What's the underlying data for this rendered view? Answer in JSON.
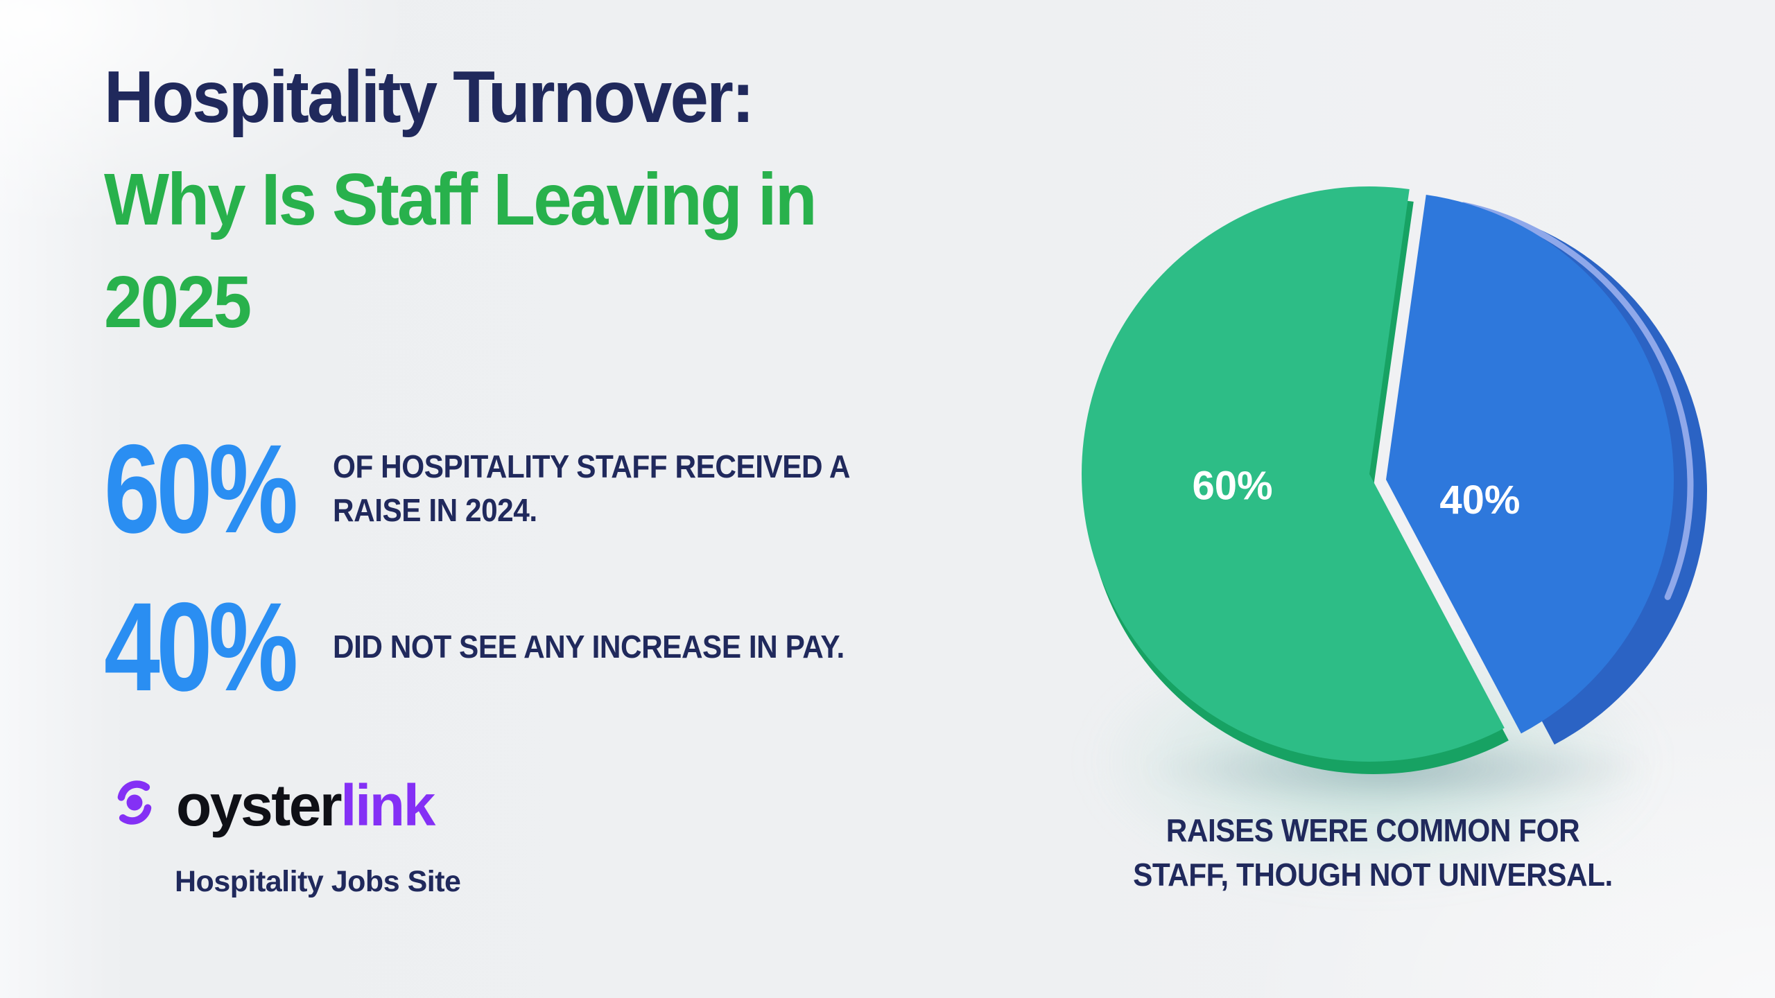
{
  "background": {
    "base": "#eef0f2"
  },
  "title": {
    "line1": "Hospitality Turnover:",
    "line2": "Why Is Staff Leaving in",
    "line3": "2025",
    "primary_color": "#20295c",
    "accent_color": "#28b14c"
  },
  "stats": {
    "value_color": "#2a8ef2",
    "text_color": "#20295c",
    "items": [
      {
        "value": "60%",
        "description": "OF HOSPITALITY STAFF RECEIVED A\nRAISE IN 2024."
      },
      {
        "value": "40%",
        "description": "DID NOT SEE ANY INCREASE IN PAY."
      }
    ]
  },
  "logo": {
    "brand_first": "oyster",
    "brand_second": "link",
    "brand_second_color": "#8430f5",
    "tagline": "Hospitality Jobs Site",
    "icon": "oyster-pearl-icon"
  },
  "chart_data": {
    "type": "pie",
    "title": "",
    "slices": [
      {
        "label": "60%",
        "value": 60,
        "color": "#2dbd86"
      },
      {
        "label": "40%",
        "value": 40,
        "color": "#2e78dc"
      }
    ],
    "caption": "RAISES WERE COMMON FOR\nSTAFF, THOUGH NOT UNIVERSAL.",
    "caption_color": "#20295c",
    "label_color": "#ffffff",
    "style": "3d-exploded",
    "rotation_deg": 8,
    "legend": false,
    "depth_colors": {
      "blue_side": "#2b63c4",
      "green_side": "#17a263",
      "bevel": "#8fa8ea"
    }
  }
}
